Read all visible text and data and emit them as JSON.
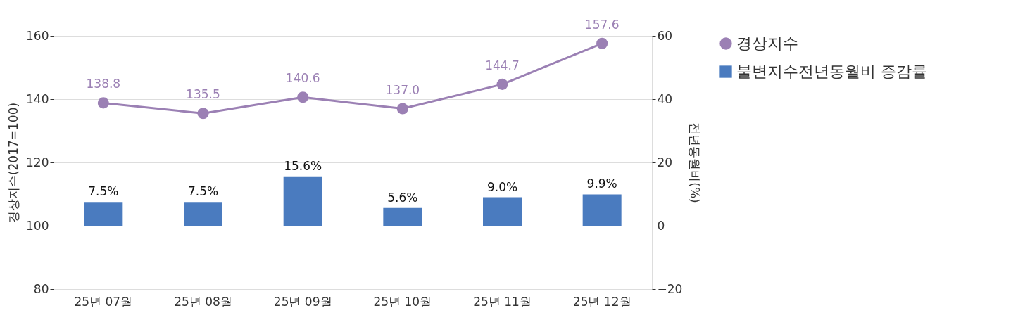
{
  "chart_data": {
    "type": "bar",
    "ylabel": "경상지수(2017=100)",
    "y2label": "전년동월비(%)",
    "categories": [
      "25년 07월",
      "25년 08월",
      "25년 09월",
      "25년 10월",
      "25년 11월",
      "25년 12월"
    ],
    "series": [
      {
        "name": "경상지수",
        "type": "line",
        "color": "#9b80b4",
        "marker": "circle",
        "values": [
          138.8,
          135.5,
          140.6,
          137.0,
          144.7,
          157.6
        ],
        "value_labels": [
          "138.8",
          "135.5",
          "140.6",
          "137.0",
          "144.7",
          "157.6"
        ]
      },
      {
        "name": "불변지수전년동월비 증감률",
        "axis": "y2",
        "color": "#4a7bbf",
        "values": [
          7.5,
          7.5,
          15.6,
          5.6,
          9.0,
          9.9
        ],
        "value_labels": [
          "7.5%",
          "7.5%",
          "15.6%",
          "5.6%",
          "9.0%",
          "9.9%"
        ]
      }
    ],
    "ylim": [
      80,
      160
    ],
    "yticks": [
      80,
      100,
      120,
      140,
      160
    ],
    "y2lim": [
      -20,
      60
    ],
    "y2ticks": [
      -20,
      0,
      20,
      40,
      60
    ],
    "grid": "y",
    "legend": "top right"
  }
}
